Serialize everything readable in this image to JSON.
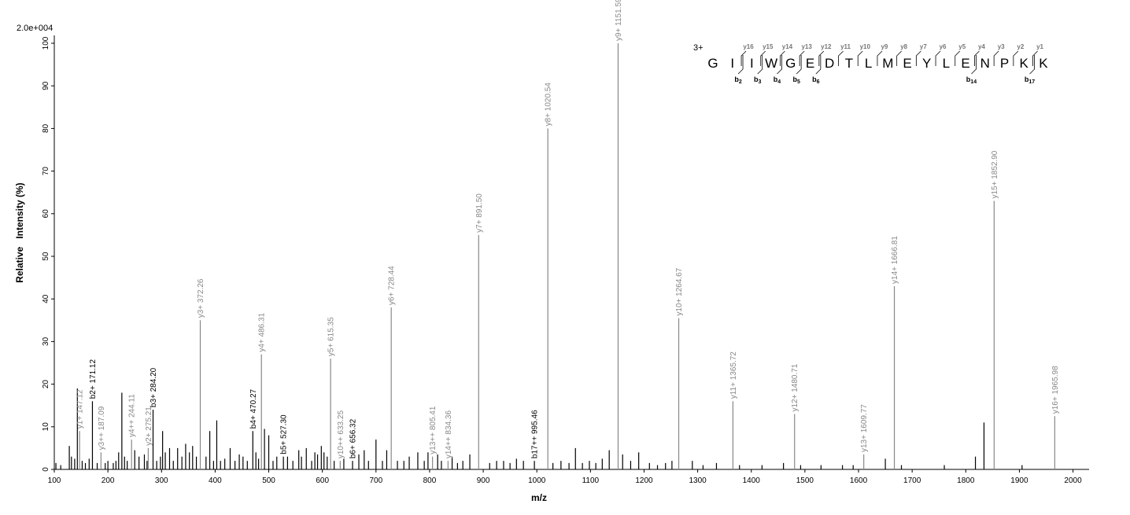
{
  "chart_data": {
    "type": "bar",
    "scale_label": "2.0e+004",
    "xlabel": "m/z",
    "ylabel": "Relative   Intensity (%)",
    "xlim": [
      100,
      2030
    ],
    "ylim": [
      0,
      100
    ],
    "xticks": [
      100,
      200,
      300,
      400,
      500,
      600,
      700,
      800,
      900,
      1000,
      1100,
      1200,
      1300,
      1400,
      1500,
      1600,
      1700,
      1800,
      1900,
      2000
    ],
    "yticks": [
      0,
      10,
      20,
      30,
      40,
      50,
      60,
      70,
      80,
      90,
      100
    ],
    "colors": {
      "y_ion": "#888888",
      "b_ion": "#000000",
      "unlabeled": "#000000"
    },
    "labeled_peaks": [
      {
        "mz": 147.12,
        "intensity": 9,
        "label": "y1+ 147.12",
        "ion": "y"
      },
      {
        "mz": 171.12,
        "intensity": 16,
        "label": "b2+ 171.12",
        "ion": "b"
      },
      {
        "mz": 187.09,
        "intensity": 4,
        "label": "y3++ 187.09",
        "ion": "y"
      },
      {
        "mz": 244.11,
        "intensity": 7,
        "label": "y4++ 244.11",
        "ion": "y"
      },
      {
        "mz": 275.21,
        "intensity": 5,
        "label": "y2+ 275.21",
        "ion": "y"
      },
      {
        "mz": 284.2,
        "intensity": 14,
        "label": "b3+ 284.20",
        "ion": "b"
      },
      {
        "mz": 372.26,
        "intensity": 35,
        "label": "y3+ 372.26",
        "ion": "y"
      },
      {
        "mz": 470.27,
        "intensity": 9,
        "label": "b4+ 470.27",
        "ion": "b"
      },
      {
        "mz": 486.31,
        "intensity": 27,
        "label": "y4+ 486.31",
        "ion": "y"
      },
      {
        "mz": 527.3,
        "intensity": 3,
        "label": "b5+ 527.30",
        "ion": "b"
      },
      {
        "mz": 615.35,
        "intensity": 26,
        "label": "y5+ 615.35",
        "ion": "y"
      },
      {
        "mz": 633.25,
        "intensity": 2,
        "label": "y10++ 633.25",
        "ion": "y"
      },
      {
        "mz": 656.32,
        "intensity": 2,
        "label": "b6+ 656.32",
        "ion": "b"
      },
      {
        "mz": 728.44,
        "intensity": 38,
        "label": "y6+ 728.44",
        "ion": "y"
      },
      {
        "mz": 805.41,
        "intensity": 3,
        "label": "y13++ 805.41",
        "ion": "y"
      },
      {
        "mz": 834.36,
        "intensity": 2,
        "label": "y14++ 834.36",
        "ion": "y"
      },
      {
        "mz": 891.5,
        "intensity": 55,
        "label": "y7+ 891.50",
        "ion": "y"
      },
      {
        "mz": 995.46,
        "intensity": 2,
        "label": "b17++ 995.46",
        "ion": "b"
      },
      {
        "mz": 1020.54,
        "intensity": 80,
        "label": "y8+ 1020.54",
        "ion": "y"
      },
      {
        "mz": 1151.59,
        "intensity": 100,
        "label": "y9+ 1151.59",
        "ion": "y"
      },
      {
        "mz": 1264.67,
        "intensity": 35.5,
        "label": "y10+ 1264.67",
        "ion": "y"
      },
      {
        "mz": 1365.72,
        "intensity": 16,
        "label": "y11+ 1365.72",
        "ion": "y"
      },
      {
        "mz": 1480.71,
        "intensity": 13,
        "label": "y12+ 1480.71",
        "ion": "y"
      },
      {
        "mz": 1609.77,
        "intensity": 3.5,
        "label": "y13+ 1609.77",
        "ion": "y"
      },
      {
        "mz": 1666.81,
        "intensity": 43,
        "label": "y14+ 1666.81",
        "ion": "y"
      },
      {
        "mz": 1852.9,
        "intensity": 63,
        "label": "y15+ 1852.90",
        "ion": "y"
      },
      {
        "mz": 1965.98,
        "intensity": 12.5,
        "label": "y16+ 1965.98",
        "ion": "y"
      }
    ],
    "other_peaks": [
      [
        103,
        1.5
      ],
      [
        112,
        1
      ],
      [
        128,
        5.5
      ],
      [
        132,
        3
      ],
      [
        138,
        2.5
      ],
      [
        143,
        19
      ],
      [
        152,
        2
      ],
      [
        158,
        1.5
      ],
      [
        165,
        2.5
      ],
      [
        180,
        1.5
      ],
      [
        195,
        1.5
      ],
      [
        200,
        2
      ],
      [
        210,
        1.5
      ],
      [
        215,
        2
      ],
      [
        220,
        4
      ],
      [
        226,
        18
      ],
      [
        231,
        3
      ],
      [
        236,
        2
      ],
      [
        250,
        4.5
      ],
      [
        258,
        3
      ],
      [
        268,
        3.5
      ],
      [
        273,
        2
      ],
      [
        291,
        2
      ],
      [
        298,
        3
      ],
      [
        302,
        9
      ],
      [
        307,
        4
      ],
      [
        315,
        5
      ],
      [
        322,
        2
      ],
      [
        330,
        5
      ],
      [
        338,
        3
      ],
      [
        345,
        6
      ],
      [
        352,
        4
      ],
      [
        358,
        5.5
      ],
      [
        365,
        3
      ],
      [
        383,
        3
      ],
      [
        390,
        9
      ],
      [
        397,
        2
      ],
      [
        403,
        11.5
      ],
      [
        410,
        2
      ],
      [
        418,
        2.5
      ],
      [
        428,
        5
      ],
      [
        437,
        2
      ],
      [
        445,
        3.5
      ],
      [
        452,
        3
      ],
      [
        460,
        2
      ],
      [
        476,
        4
      ],
      [
        481,
        2.5
      ],
      [
        492,
        9.5
      ],
      [
        500,
        8
      ],
      [
        508,
        2
      ],
      [
        515,
        3
      ],
      [
        535,
        3
      ],
      [
        545,
        2
      ],
      [
        556,
        4.5
      ],
      [
        561,
        3
      ],
      [
        570,
        5
      ],
      [
        580,
        2
      ],
      [
        586,
        4
      ],
      [
        591,
        3.5
      ],
      [
        598,
        5.5
      ],
      [
        603,
        4
      ],
      [
        609,
        3
      ],
      [
        622,
        2
      ],
      [
        640,
        2.5
      ],
      [
        668,
        3.5
      ],
      [
        678,
        4.5
      ],
      [
        686,
        2
      ],
      [
        700,
        7
      ],
      [
        712,
        2
      ],
      [
        720,
        4.5
      ],
      [
        740,
        2
      ],
      [
        752,
        2
      ],
      [
        762,
        3
      ],
      [
        778,
        4
      ],
      [
        790,
        2
      ],
      [
        797,
        4
      ],
      [
        815,
        3.5
      ],
      [
        822,
        2
      ],
      [
        842,
        3
      ],
      [
        852,
        1.5
      ],
      [
        862,
        2
      ],
      [
        875,
        3.5
      ],
      [
        912,
        1.5
      ],
      [
        925,
        2
      ],
      [
        938,
        2
      ],
      [
        950,
        1.5
      ],
      [
        962,
        2.5
      ],
      [
        975,
        2
      ],
      [
        1030,
        1.5
      ],
      [
        1045,
        2
      ],
      [
        1060,
        1.5
      ],
      [
        1072,
        5
      ],
      [
        1085,
        1.5
      ],
      [
        1098,
        2
      ],
      [
        1110,
        1.5
      ],
      [
        1122,
        2.5
      ],
      [
        1135,
        4.5
      ],
      [
        1160,
        3.5
      ],
      [
        1175,
        2
      ],
      [
        1190,
        4
      ],
      [
        1210,
        1.5
      ],
      [
        1225,
        1
      ],
      [
        1240,
        1.5
      ],
      [
        1252,
        2
      ],
      [
        1290,
        2
      ],
      [
        1310,
        1
      ],
      [
        1335,
        1.5
      ],
      [
        1378,
        1
      ],
      [
        1420,
        1
      ],
      [
        1460,
        1.5
      ],
      [
        1492,
        1
      ],
      [
        1530,
        1
      ],
      [
        1570,
        1
      ],
      [
        1590,
        1
      ],
      [
        1650,
        2.5
      ],
      [
        1680,
        1
      ],
      [
        1760,
        1
      ],
      [
        1818,
        3
      ],
      [
        1834,
        11
      ],
      [
        1905,
        1
      ]
    ],
    "sequence": {
      "charge": "3+",
      "residues": [
        "G",
        "I",
        "I",
        "W",
        "G",
        "E",
        "D",
        "T",
        "L",
        "M",
        "E",
        "Y",
        "L",
        "E",
        "N",
        "P",
        "K",
        "K"
      ],
      "y_ions": [
        {
          "after": 2,
          "label": "y16"
        },
        {
          "after": 3,
          "label": "y15"
        },
        {
          "after": 4,
          "label": "y14"
        },
        {
          "after": 5,
          "label": "y13"
        },
        {
          "after": 6,
          "label": "y12"
        },
        {
          "after": 7,
          "label": "y11"
        },
        {
          "after": 8,
          "label": "y10"
        },
        {
          "after": 9,
          "label": "y9"
        },
        {
          "after": 10,
          "label": "y8"
        },
        {
          "after": 11,
          "label": "y7"
        },
        {
          "after": 12,
          "label": "y6"
        },
        {
          "after": 13,
          "label": "y5"
        },
        {
          "after": 14,
          "label": "y4"
        },
        {
          "after": 15,
          "label": "y3"
        },
        {
          "after": 16,
          "label": "y2"
        },
        {
          "after": 17,
          "label": "y1"
        }
      ],
      "b_ions": [
        {
          "after": 2,
          "label": "b",
          "sub": "2"
        },
        {
          "after": 3,
          "label": "b",
          "sub": "3"
        },
        {
          "after": 4,
          "label": "b",
          "sub": "4"
        },
        {
          "after": 5,
          "label": "b",
          "sub": "5"
        },
        {
          "after": 6,
          "label": "b",
          "sub": "6"
        },
        {
          "after": 14,
          "label": "b",
          "sub": "14"
        },
        {
          "after": 17,
          "label": "b",
          "sub": "17"
        }
      ]
    }
  }
}
